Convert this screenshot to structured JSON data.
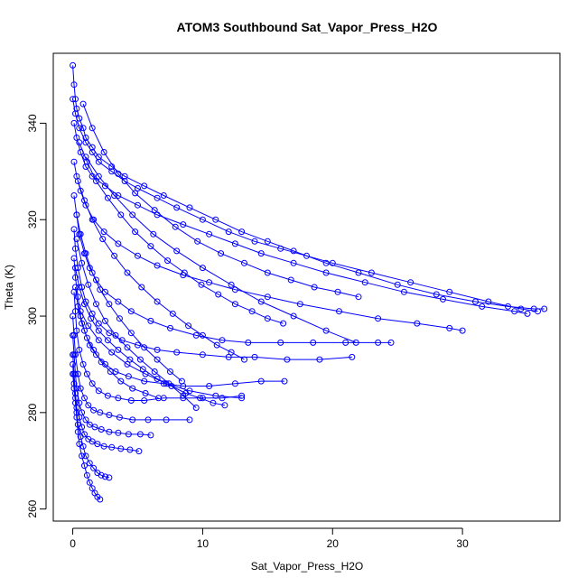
{
  "chart_data": {
    "type": "line",
    "title": "ATOM3 Southbound Sat_Vapor_Press_H2O",
    "xlabel": "Sat_Vapor_Press_H2O",
    "ylabel": "Theta (K)",
    "xlim": [
      -1.5,
      37.5
    ],
    "ylim": [
      257.5,
      354.5
    ],
    "x_ticks": [
      0,
      10,
      20,
      30
    ],
    "y_ticks": [
      260,
      280,
      300,
      320,
      340
    ],
    "grid": false,
    "legend": "none",
    "color": "#0000ff",
    "marker": "open-circle",
    "series": [
      {
        "x": [
          0.0,
          0.1,
          0.2,
          0.3,
          0.5,
          0.8,
          1.0,
          1.5,
          2.0,
          3.0,
          4.0,
          5.5,
          7.0,
          9.0,
          11.0,
          13.0,
          15.0,
          17.0,
          19.5,
          22.0,
          25.0,
          28.0,
          31.0,
          33.5,
          35.5,
          36.3
        ],
        "y": [
          352.0,
          348.0,
          345.0,
          343.0,
          341.0,
          339.0,
          337.0,
          335.0,
          333.0,
          331.0,
          329.0,
          327.0,
          325.0,
          322.5,
          320.0,
          317.5,
          315.5,
          313.5,
          311.0,
          309.0,
          306.5,
          304.5,
          303.0,
          302.0,
          301.5,
          301.5
        ]
      },
      {
        "x": [
          0.0,
          0.2,
          0.5,
          1.0,
          1.5,
          2.0,
          3.0,
          4.0,
          5.0,
          6.5,
          8.0,
          10.0,
          12.0,
          14.0,
          16.0,
          18.0,
          20.0,
          23.0,
          26.0,
          29.0,
          32.0,
          34.5,
          35.8
        ],
        "y": [
          345.0,
          342.0,
          339.0,
          336.0,
          334.0,
          332.0,
          330.0,
          328.0,
          326.5,
          324.5,
          322.5,
          320.0,
          317.5,
          315.5,
          314.0,
          312.5,
          311.0,
          309.0,
          307.0,
          305.0,
          303.0,
          301.5,
          301.0
        ]
      },
      {
        "x": [
          0.1,
          0.3,
          0.6,
          1.0,
          1.5,
          2.5,
          3.5,
          5.0,
          6.5,
          8.5,
          10.5,
          12.5,
          14.5,
          17.0,
          19.5,
          22.5,
          25.5,
          28.5,
          31.5,
          34.0,
          35.0
        ],
        "y": [
          340.0,
          337.0,
          334.0,
          331.0,
          329.0,
          327.0,
          325.0,
          323.0,
          321.0,
          319.0,
          317.0,
          315.0,
          313.0,
          311.0,
          309.0,
          307.0,
          305.0,
          303.5,
          302.0,
          301.0,
          300.5
        ]
      },
      {
        "x": [
          0.1,
          0.3,
          0.6,
          1.0,
          1.6,
          2.4,
          3.5,
          5.0,
          6.5,
          8.5,
          10.5,
          12.5,
          15.0,
          17.5,
          20.5,
          23.5,
          26.5,
          29.0,
          30.0
        ],
        "y": [
          332.0,
          329.0,
          326.0,
          323.0,
          320.0,
          317.5,
          315.0,
          312.5,
          310.5,
          308.5,
          307.0,
          305.5,
          304.0,
          302.5,
          301.0,
          299.5,
          298.5,
          297.5,
          297.0
        ]
      },
      {
        "x": [
          0.1,
          0.3,
          0.5,
          0.9,
          1.3,
          1.8,
          2.5,
          3.5,
          4.5,
          6.0,
          7.5,
          9.5,
          11.5,
          13.5,
          16.0,
          18.5,
          21.0,
          23.5,
          24.5
        ],
        "y": [
          325.0,
          321.0,
          317.0,
          313.0,
          310.0,
          307.5,
          305.0,
          303.0,
          301.0,
          299.0,
          297.5,
          296.0,
          295.0,
          294.5,
          294.5,
          294.5,
          294.5,
          294.5,
          294.5
        ]
      },
      {
        "x": [
          0.1,
          0.2,
          0.4,
          0.7,
          1.0,
          1.5,
          2.0,
          2.8,
          3.8,
          5.0,
          6.5,
          8.0,
          10.0,
          12.0,
          14.0,
          16.5,
          19.0,
          21.5
        ],
        "y": [
          318.0,
          314.0,
          310.0,
          306.0,
          303.0,
          300.5,
          298.5,
          296.5,
          295.0,
          294.0,
          293.0,
          292.5,
          292.0,
          291.5,
          291.5,
          291.0,
          291.0,
          291.5
        ]
      },
      {
        "x": [
          0.1,
          0.2,
          0.4,
          0.6,
          0.9,
          1.3,
          1.8,
          2.5,
          3.3,
          4.3,
          5.5,
          7.0,
          8.5,
          10.5,
          12.5,
          14.5,
          16.3
        ],
        "y": [
          312.0,
          308.0,
          304.0,
          300.0,
          297.0,
          294.0,
          292.0,
          290.0,
          288.5,
          287.5,
          286.5,
          286.0,
          285.5,
          285.5,
          286.0,
          286.5,
          286.5
        ]
      },
      {
        "x": [
          0.1,
          0.2,
          0.3,
          0.5,
          0.8,
          1.1,
          1.5,
          2.0,
          2.7,
          3.5,
          4.5,
          5.5,
          7.0,
          8.5,
          10.0,
          11.5,
          13.0
        ],
        "y": [
          305.0,
          301.0,
          297.0,
          293.0,
          290.0,
          288.0,
          286.0,
          284.5,
          283.5,
          283.0,
          282.5,
          282.5,
          283.0,
          283.0,
          283.0,
          283.0,
          283.5
        ]
      },
      {
        "x": [
          0.0,
          0.1,
          0.2,
          0.4,
          0.6,
          0.9,
          1.2,
          1.6,
          2.1,
          2.8,
          3.6,
          4.6,
          5.8,
          7.2,
          9.0
        ],
        "y": [
          300.0,
          296.0,
          292.0,
          288.0,
          285.0,
          283.0,
          281.5,
          280.5,
          280.0,
          279.5,
          279.0,
          278.5,
          278.5,
          278.5,
          278.5
        ]
      },
      {
        "x": [
          0.0,
          0.1,
          0.2,
          0.3,
          0.5,
          0.7,
          1.0,
          1.3,
          1.7,
          2.2,
          2.8,
          3.5,
          4.3,
          5.2,
          6.0
        ],
        "y": [
          296.0,
          292.0,
          288.0,
          285.0,
          282.0,
          280.0,
          278.5,
          277.5,
          277.0,
          276.5,
          276.0,
          275.8,
          275.5,
          275.5,
          275.3
        ]
      },
      {
        "x": [
          0.0,
          0.1,
          0.2,
          0.3,
          0.5,
          0.7,
          0.9,
          1.2,
          1.5,
          1.9,
          2.4,
          3.0,
          3.7,
          4.4,
          5.1
        ],
        "y": [
          292.0,
          288.0,
          284.0,
          281.0,
          279.0,
          277.0,
          275.5,
          274.5,
          274.0,
          273.5,
          273.0,
          272.8,
          272.5,
          272.3,
          272.0
        ]
      },
      {
        "x": [
          0.0,
          0.1,
          0.2,
          0.3,
          0.4,
          0.6,
          0.8,
          1.0,
          1.3,
          1.6,
          1.9,
          2.2,
          2.5,
          2.8
        ],
        "y": [
          290.0,
          286.0,
          283.0,
          280.0,
          277.5,
          275.0,
          273.0,
          271.0,
          269.5,
          268.5,
          267.5,
          267.0,
          266.7,
          266.5
        ]
      },
      {
        "x": [
          0.0,
          0.1,
          0.2,
          0.3,
          0.4,
          0.5,
          0.7,
          0.9,
          1.1,
          1.3,
          1.5,
          1.7,
          1.9,
          2.1
        ],
        "y": [
          288.0,
          285.0,
          282.0,
          279.0,
          276.0,
          273.5,
          271.0,
          269.0,
          267.0,
          265.5,
          264.3,
          263.3,
          262.5,
          262.0
        ]
      },
      {
        "x": [
          0.2,
          0.5,
          0.9,
          1.4,
          2.0,
          2.7,
          3.5,
          4.4,
          5.4,
          6.5,
          7.6,
          8.7,
          9.8,
          10.8,
          11.7
        ],
        "y": [
          310.0,
          306.0,
          302.5,
          299.5,
          297.0,
          295.0,
          293.0,
          291.0,
          289.0,
          287.0,
          285.5,
          284.0,
          283.0,
          282.0,
          281.5
        ]
      },
      {
        "x": [
          0.3,
          0.7,
          1.2,
          1.8,
          2.5,
          3.3,
          4.2,
          5.2,
          6.3,
          7.4,
          8.5,
          9.5
        ],
        "y": [
          316.0,
          311.0,
          306.5,
          302.5,
          299.0,
          296.0,
          293.5,
          291.0,
          288.5,
          286.0,
          283.5,
          281.0
        ]
      },
      {
        "x": [
          0.4,
          0.9,
          1.5,
          2.3,
          3.2,
          4.2,
          5.3,
          6.5,
          7.7,
          8.9,
          10.0,
          11.1,
          12.2,
          13.2
        ],
        "y": [
          328.0,
          324.0,
          320.0,
          316.0,
          312.5,
          309.0,
          306.0,
          303.0,
          300.5,
          298.0,
          296.0,
          294.0,
          292.5,
          291.0
        ]
      },
      {
        "x": [
          0.5,
          1.1,
          1.8,
          2.7,
          3.7,
          4.8,
          6.0,
          7.3,
          8.6,
          9.9,
          11.2,
          12.5,
          13.8,
          15.0,
          16.2
        ],
        "y": [
          336.0,
          332.0,
          328.0,
          324.5,
          321.0,
          317.5,
          314.5,
          311.5,
          309.0,
          306.5,
          304.5,
          302.5,
          301.0,
          299.5,
          298.5
        ]
      },
      {
        "x": [
          0.3,
          0.6,
          1.0,
          1.5,
          2.1,
          2.8,
          3.6,
          4.5,
          5.5,
          6.5,
          7.5,
          8.4
        ],
        "y": [
          321.0,
          317.0,
          313.0,
          309.0,
          305.5,
          302.5,
          299.5,
          296.5,
          293.5,
          291.0,
          288.5,
          286.5
        ]
      },
      {
        "x": [
          0.8,
          1.5,
          2.4,
          3.5,
          4.8,
          6.3,
          7.9,
          9.6,
          11.4,
          13.2,
          15.0,
          16.8,
          18.6,
          20.4,
          22.0
        ],
        "y": [
          344.0,
          339.0,
          334.0,
          329.5,
          325.5,
          322.0,
          318.5,
          315.5,
          313.0,
          311.0,
          309.0,
          307.5,
          306.0,
          305.0,
          304.0
        ]
      },
      {
        "x": [
          0.2,
          0.4,
          0.7,
          1.1,
          1.6,
          2.2,
          2.9,
          3.7,
          4.6,
          5.6,
          6.6
        ],
        "y": [
          306.0,
          302.0,
          298.5,
          295.5,
          293.0,
          290.5,
          288.5,
          286.5,
          285.0,
          284.0,
          283.0
        ]
      },
      {
        "x": [
          1.0,
          2.0,
          3.2,
          4.6,
          6.2,
          8.0,
          10.0,
          12.2,
          14.5,
          17.0,
          19.5,
          21.8
        ],
        "y": [
          333.0,
          329.0,
          325.0,
          321.0,
          317.0,
          313.5,
          310.0,
          306.5,
          303.0,
          300.0,
          297.0,
          294.5
        ]
      },
      {
        "x": [
          0.6,
          1.2,
          2.0,
          3.0,
          4.2,
          5.6,
          7.2,
          9.0,
          11.0,
          13.0
        ],
        "y": [
          301.0,
          298.0,
          295.0,
          292.5,
          290.0,
          288.0,
          286.0,
          284.5,
          283.5,
          283.0
        ]
      }
    ]
  }
}
